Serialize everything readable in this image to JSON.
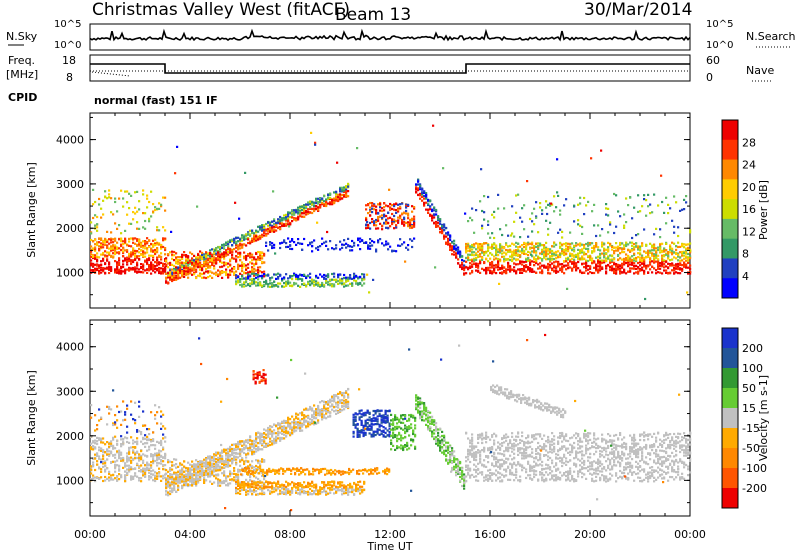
{
  "header": {
    "station_title": "Christmas Valley West (fitACF)",
    "beam_label": "Beam 13",
    "date": "30/Mar/2014"
  },
  "summary_panels": {
    "nsky_label": "N.Sky",
    "nsky_ticks": [
      "10^5",
      "10^0"
    ],
    "nsearch_label": "N.Search",
    "nsearch_ticks": [
      "10^5",
      "10^0"
    ],
    "freq_label_line1": "Freq.",
    "freq_label_line2": "[MHz]",
    "freq_ticks": [
      "18",
      "8"
    ],
    "nave_label": "Nave",
    "nave_ticks": [
      "60",
      "0"
    ],
    "cpid_label": "CPID",
    "cpid_value": "normal (fast) 151 IF"
  },
  "colors": {
    "power_scale": [
      "#0000ff",
      "#2040c0",
      "#339966",
      "#66bb66",
      "#ccdd00",
      "#ffcc00",
      "#ff8800",
      "#ff3300",
      "#ee0000"
    ],
    "velocity_scale": [
      "#1a33cc",
      "#225599",
      "#339933",
      "#66cc33",
      "#c0c0c0",
      "#ffaa00",
      "#ff8800",
      "#ff5500",
      "#ee0000"
    ]
  },
  "chart_data": [
    {
      "type": "heatmap",
      "name": "power",
      "ylabel": "Slant Range [km]",
      "yticks": [
        "4000",
        "3000",
        "2000",
        "1000"
      ],
      "ylim": [
        200,
        4600
      ],
      "xlim": [
        0,
        24
      ],
      "colorbar_label": "Power [dB]",
      "colorbar_ticks": [
        "28",
        "24",
        "20",
        "16",
        "12",
        "8",
        "4"
      ]
    },
    {
      "type": "heatmap",
      "name": "velocity",
      "ylabel": "Slant Range [km]",
      "yticks": [
        "4000",
        "3000",
        "2000",
        "1000"
      ],
      "ylim": [
        200,
        4600
      ],
      "xlim": [
        0,
        24
      ],
      "colorbar_label": "Velocity [m s-1]",
      "colorbar_ticks": [
        "200",
        "100",
        "50",
        "15",
        "-15",
        "-50",
        "-100",
        "-200"
      ]
    }
  ],
  "x_axis": {
    "label": "Time UT",
    "ticks": [
      "00:00",
      "04:00",
      "08:00",
      "12:00",
      "16:00",
      "20:00",
      "00:00"
    ]
  }
}
